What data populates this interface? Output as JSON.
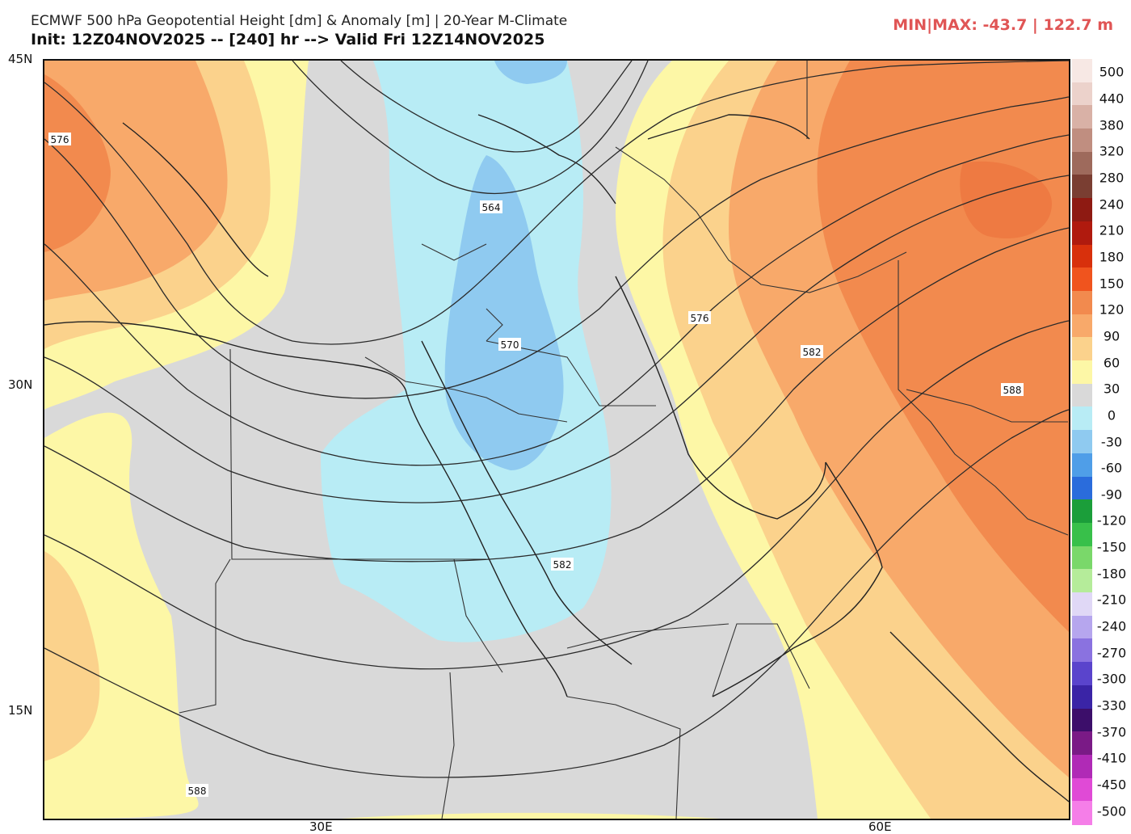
{
  "header": {
    "title": "ECMWF 500 hPa Geopotential Height [dm] & Anomaly [m] | 20-Year M-Climate",
    "init": "Init: 12Z04NOV2025 -- [240] hr --> Valid Fri 12Z14NOV2025",
    "minmax": "MIN|MAX: -43.7 | 122.7 m"
  },
  "map": {
    "lat_labels": [
      "45N",
      "30N",
      "15N"
    ],
    "lon_labels": [
      "30E",
      "60E"
    ],
    "contour_labels": [
      "576",
      "564",
      "570",
      "576",
      "582",
      "588",
      "582",
      "588"
    ],
    "colors": {
      "zero": "#d9d9d9",
      "pos30": "#fdf7a6",
      "pos60": "#fbd28c",
      "pos90": "#f8a96a",
      "pos120": "#f28a4e",
      "neg30": "#b8ecf5",
      "neg60": "#8fcaf0"
    }
  },
  "colorbar": {
    "labels": [
      "500",
      "440",
      "380",
      "320",
      "280",
      "240",
      "210",
      "180",
      "150",
      "120",
      "90",
      "60",
      "30",
      "0",
      "-30",
      "-60",
      "-90",
      "-120",
      "-150",
      "-180",
      "-210",
      "-240",
      "-270",
      "-300",
      "-330",
      "-370",
      "-410",
      "-450",
      "-500"
    ],
    "colors": [
      "#f7e8e4",
      "#ecd2cb",
      "#d9b1a6",
      "#c08e80",
      "#9e6a5c",
      "#7a3e32",
      "#8e1a12",
      "#b01a0e",
      "#d8300c",
      "#f0541e",
      "#f28a4e",
      "#f8a96a",
      "#fbd28c",
      "#fdf7a6",
      "#d9d9d9",
      "#b8ecf5",
      "#8fcaf0",
      "#4f9ee8",
      "#2a6cdc",
      "#1b9e3a",
      "#38c04a",
      "#7ad86a",
      "#b5ec9a",
      "#e0d8f6",
      "#b6a6ee",
      "#8a72e0",
      "#5a44cc",
      "#3a24a6",
      "#3c0e6a",
      "#7a1a86",
      "#b02ab6",
      "#e04ad6",
      "#f57ee8"
    ]
  }
}
